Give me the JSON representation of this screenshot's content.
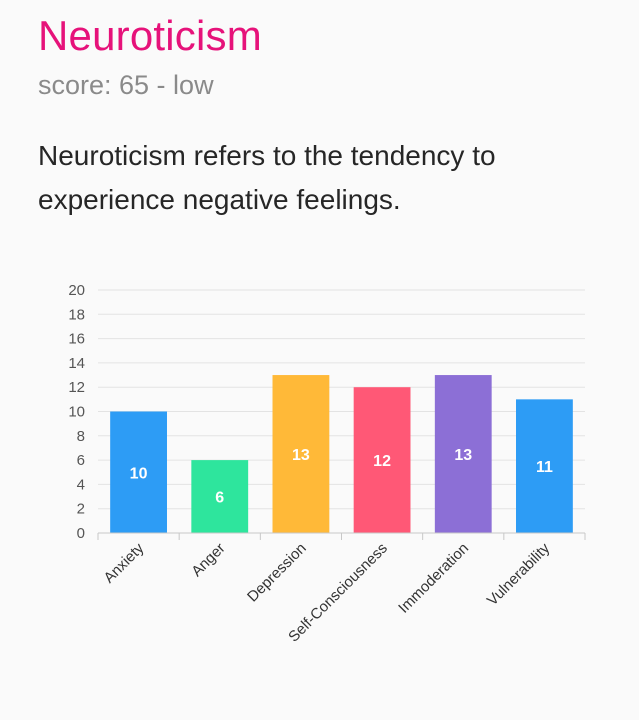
{
  "header": {
    "title": "Neuroticism",
    "subtitle": "score: 65 - low",
    "description": "Neuroticism refers to the tendency to experience negative feelings."
  },
  "chart_data": {
    "type": "bar",
    "categories": [
      "Anxiety",
      "Anger",
      "Depression",
      "Self-Consciousness",
      "Immoderation",
      "Vulnerability"
    ],
    "values": [
      10,
      6,
      13,
      12,
      13,
      11
    ],
    "colors": [
      "#2d9cf5",
      "#2ee59d",
      "#ffb938",
      "#ff5876",
      "#8c6fd6",
      "#2d9cf5"
    ],
    "ylim": [
      0,
      20
    ],
    "yticks": [
      0,
      2,
      4,
      6,
      8,
      10,
      12,
      14,
      16,
      18,
      20
    ],
    "grid": true
  }
}
